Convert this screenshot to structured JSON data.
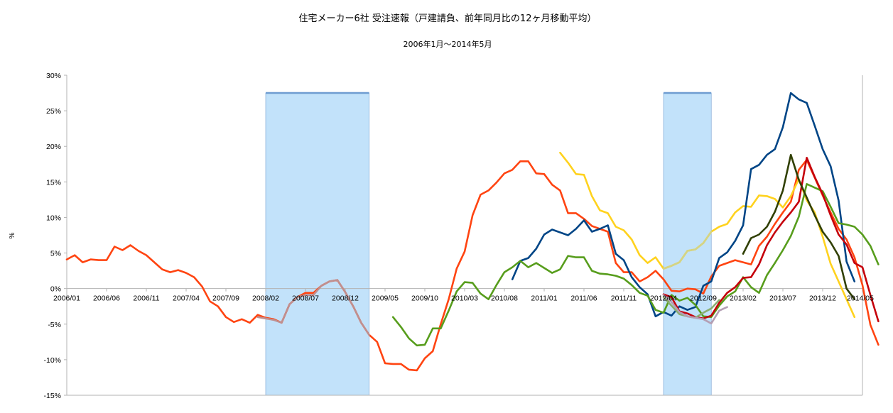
{
  "chart_data": {
    "type": "line",
    "title": "住宅メーカー6社 受注速報（戸建請負、前年同月比の12ヶ月移動平均）",
    "subtitle": "2006年1月～2014年5月",
    "ylabel": "%",
    "ylim": [
      -15,
      30
    ],
    "yticks": [
      "30%",
      "25%",
      "20%",
      "15%",
      "10%",
      "5%",
      "0%",
      "-5%",
      "-10%",
      "-15%"
    ],
    "ytick_values": [
      30,
      25,
      20,
      15,
      10,
      5,
      0,
      -5,
      -10,
      -15
    ],
    "x_start": "2006/01",
    "x_end": "2014/05",
    "xtick_labels": [
      "2006/01",
      "2006/06",
      "2006/11",
      "2007/04",
      "2007/09",
      "2008/02",
      "2008/07",
      "2008/12",
      "2009/05",
      "2009/10",
      "2010/03",
      "2010/08",
      "2011/01",
      "2011/06",
      "2011/11",
      "2012/04",
      "2012/09",
      "2013/02",
      "2013/07",
      "2013/12",
      "2014/05"
    ],
    "xtick_months": [
      "2006/01",
      "2006/06",
      "2006/11",
      "2007/04",
      "2007/09",
      "2008/02",
      "2008/07",
      "2008/12",
      "2009/05",
      "2009/10",
      "2010/03",
      "2010/08",
      "2011/01",
      "2011/06",
      "2011/11",
      "2012/04",
      "2012/09",
      "2013/02",
      "2013/07",
      "2013/12",
      "2014/05"
    ],
    "grid": "none",
    "legend": "none",
    "shaded_regions": [
      {
        "start": "2008/02",
        "end": "2009/03",
        "top": 27.5,
        "bottom": -15,
        "color": "#c2e2fa",
        "edge": "#6f9dd1"
      },
      {
        "start": "2012/04",
        "end": "2012/10",
        "top": 27.5,
        "bottom": -15,
        "color": "#c2e2fa",
        "edge": "#6f9dd1"
      }
    ],
    "series": [
      {
        "color": "#ff4411",
        "start": "2006/01",
        "values": [
          4.1,
          4.7,
          3.7,
          4.1,
          4.0,
          4.0,
          5.9,
          5.4,
          6.1,
          5.3,
          4.7,
          3.7,
          2.7,
          2.3,
          2.6,
          2.2,
          1.6,
          0.3,
          -1.8,
          -2.5,
          -4.0,
          -4.7,
          -4.3,
          -4.8,
          -3.7,
          -4.1,
          -4.3,
          -4.8,
          -2.2,
          -1.2,
          -0.6,
          -0.6,
          0.4,
          1.0,
          1.2,
          -0.5,
          -2.5,
          -4.8,
          -6.5,
          -7.5,
          -10.5,
          -10.6,
          -10.6,
          -11.4,
          -11.5,
          -9.8,
          -8.8,
          -5.0,
          -1.5,
          2.8,
          5.2,
          10.3,
          13.2,
          13.8,
          14.9,
          16.2,
          16.7,
          17.9,
          17.9,
          16.2,
          16.1,
          14.6,
          13.8,
          10.6,
          10.6,
          9.8,
          8.8,
          8.4,
          8.0,
          3.6,
          2.3,
          2.3,
          1.0,
          1.6,
          2.5,
          1.3,
          -0.3,
          -0.4,
          0.0,
          -0.1,
          -0.7,
          1.7,
          3.2,
          3.6,
          4.0,
          3.7,
          3.4,
          6.0,
          7.3,
          9.1,
          10.7,
          12.2,
          16.7,
          18.1,
          15.6,
          13.1,
          10.7,
          8.4,
          6.9,
          4.4,
          0.5,
          -5.1,
          -7.9
        ]
      },
      {
        "color": "#ffd21e",
        "start": "2011/03",
        "values": [
          19.1,
          17.7,
          16.1,
          16.0,
          13.0,
          11.0,
          10.6,
          8.7,
          8.2,
          6.9,
          4.7,
          3.6,
          4.4,
          2.8,
          3.2,
          3.7,
          5.3,
          5.5,
          6.4,
          8.0,
          8.7,
          9.1,
          10.7,
          11.6,
          11.5,
          13.1,
          13.0,
          12.6,
          11.4,
          13.0,
          15.4,
          12.4,
          10.7,
          7.3,
          3.5,
          1.0,
          -1.5,
          -4.0
        ]
      },
      {
        "color": "#004586",
        "start": "2010/09",
        "values": [
          1.3,
          3.9,
          4.3,
          5.6,
          7.6,
          8.3,
          7.9,
          7.5,
          8.4,
          9.6,
          8.0,
          8.4,
          8.9,
          4.9,
          4.0,
          1.6,
          0.2,
          -0.8,
          -3.9,
          -3.3,
          -3.8,
          -2.5,
          -3.0,
          -2.6,
          0.4,
          1.0,
          4.3,
          5.1,
          6.7,
          8.9,
          16.8,
          17.4,
          18.8,
          19.6,
          22.7,
          27.5,
          26.6,
          26.1,
          22.9,
          19.6,
          17.2,
          12.4,
          3.8,
          1.0
        ]
      },
      {
        "color": "#579d1c",
        "start": "2009/06",
        "values": [
          -4.0,
          -5.4,
          -7.0,
          -8.0,
          -7.9,
          -5.6,
          -5.6,
          -3.1,
          -0.4,
          0.9,
          0.8,
          -0.7,
          -1.5,
          0.5,
          2.3,
          3.0,
          3.9,
          3.0,
          3.6,
          2.9,
          2.2,
          2.7,
          4.6,
          4.4,
          4.4,
          2.5,
          2.1,
          2.0,
          1.8,
          1.4,
          0.5,
          -0.6,
          -1.0,
          -3.0,
          -3.4,
          -0.9,
          -1.7,
          -1.3,
          -2.3,
          -3.9,
          -4.0,
          -2.4,
          -1.1,
          -0.4,
          1.6,
          0.2,
          -0.6,
          1.9,
          3.6,
          5.4,
          7.4,
          10.1,
          14.7,
          14.2,
          13.7,
          11.5,
          9.2,
          9.0,
          8.7,
          7.6,
          6.0,
          3.4
        ]
      },
      {
        "color": "#c5000b",
        "start": "2012/04",
        "values": [
          -0.8,
          -1.2,
          -3.2,
          -3.5,
          -4.0,
          -4.2,
          -3.8,
          -2.0,
          -0.6,
          0.2,
          1.5,
          1.6,
          3.4,
          6.1,
          7.9,
          9.4,
          10.7,
          12.2,
          18.4,
          15.7,
          13.3,
          10.3,
          7.6,
          6.2,
          3.6,
          3.0,
          -0.9,
          -4.6
        ]
      },
      {
        "color": "#314004",
        "start": "2013/02",
        "values": [
          4.9,
          7.1,
          7.6,
          8.7,
          10.8,
          13.8,
          18.8,
          15.3,
          12.8,
          10.3,
          8.0,
          6.5,
          4.6,
          0.0,
          -1.5
        ]
      },
      {
        "color": "#c08f8f",
        "start": "2008/01",
        "values": [
          -4.0,
          -4.2,
          -4.4,
          -4.8,
          -2.2,
          -1.2,
          -0.9,
          -0.9,
          0.4,
          1.0,
          1.2,
          -0.5,
          -2.5,
          -4.8,
          -6.5
        ]
      },
      {
        "color": "#8aae72",
        "start": "2012/04",
        "values": [
          -1.2,
          -2.4,
          -3.6,
          -3.9,
          -4.1,
          -3.4,
          -2.8,
          -1.6
        ]
      },
      {
        "color": "#b49fb4",
        "start": "2012/04",
        "values": [
          -0.9,
          -1.9,
          -3.3,
          -3.9,
          -4.1,
          -4.3,
          -4.9,
          -3.1,
          -2.6
        ]
      },
      {
        "color": "#d4d484",
        "start": "2012/04",
        "values": [
          2.8,
          3.2,
          3.7,
          5.3,
          5.5,
          6.4,
          8.0
        ]
      }
    ]
  }
}
